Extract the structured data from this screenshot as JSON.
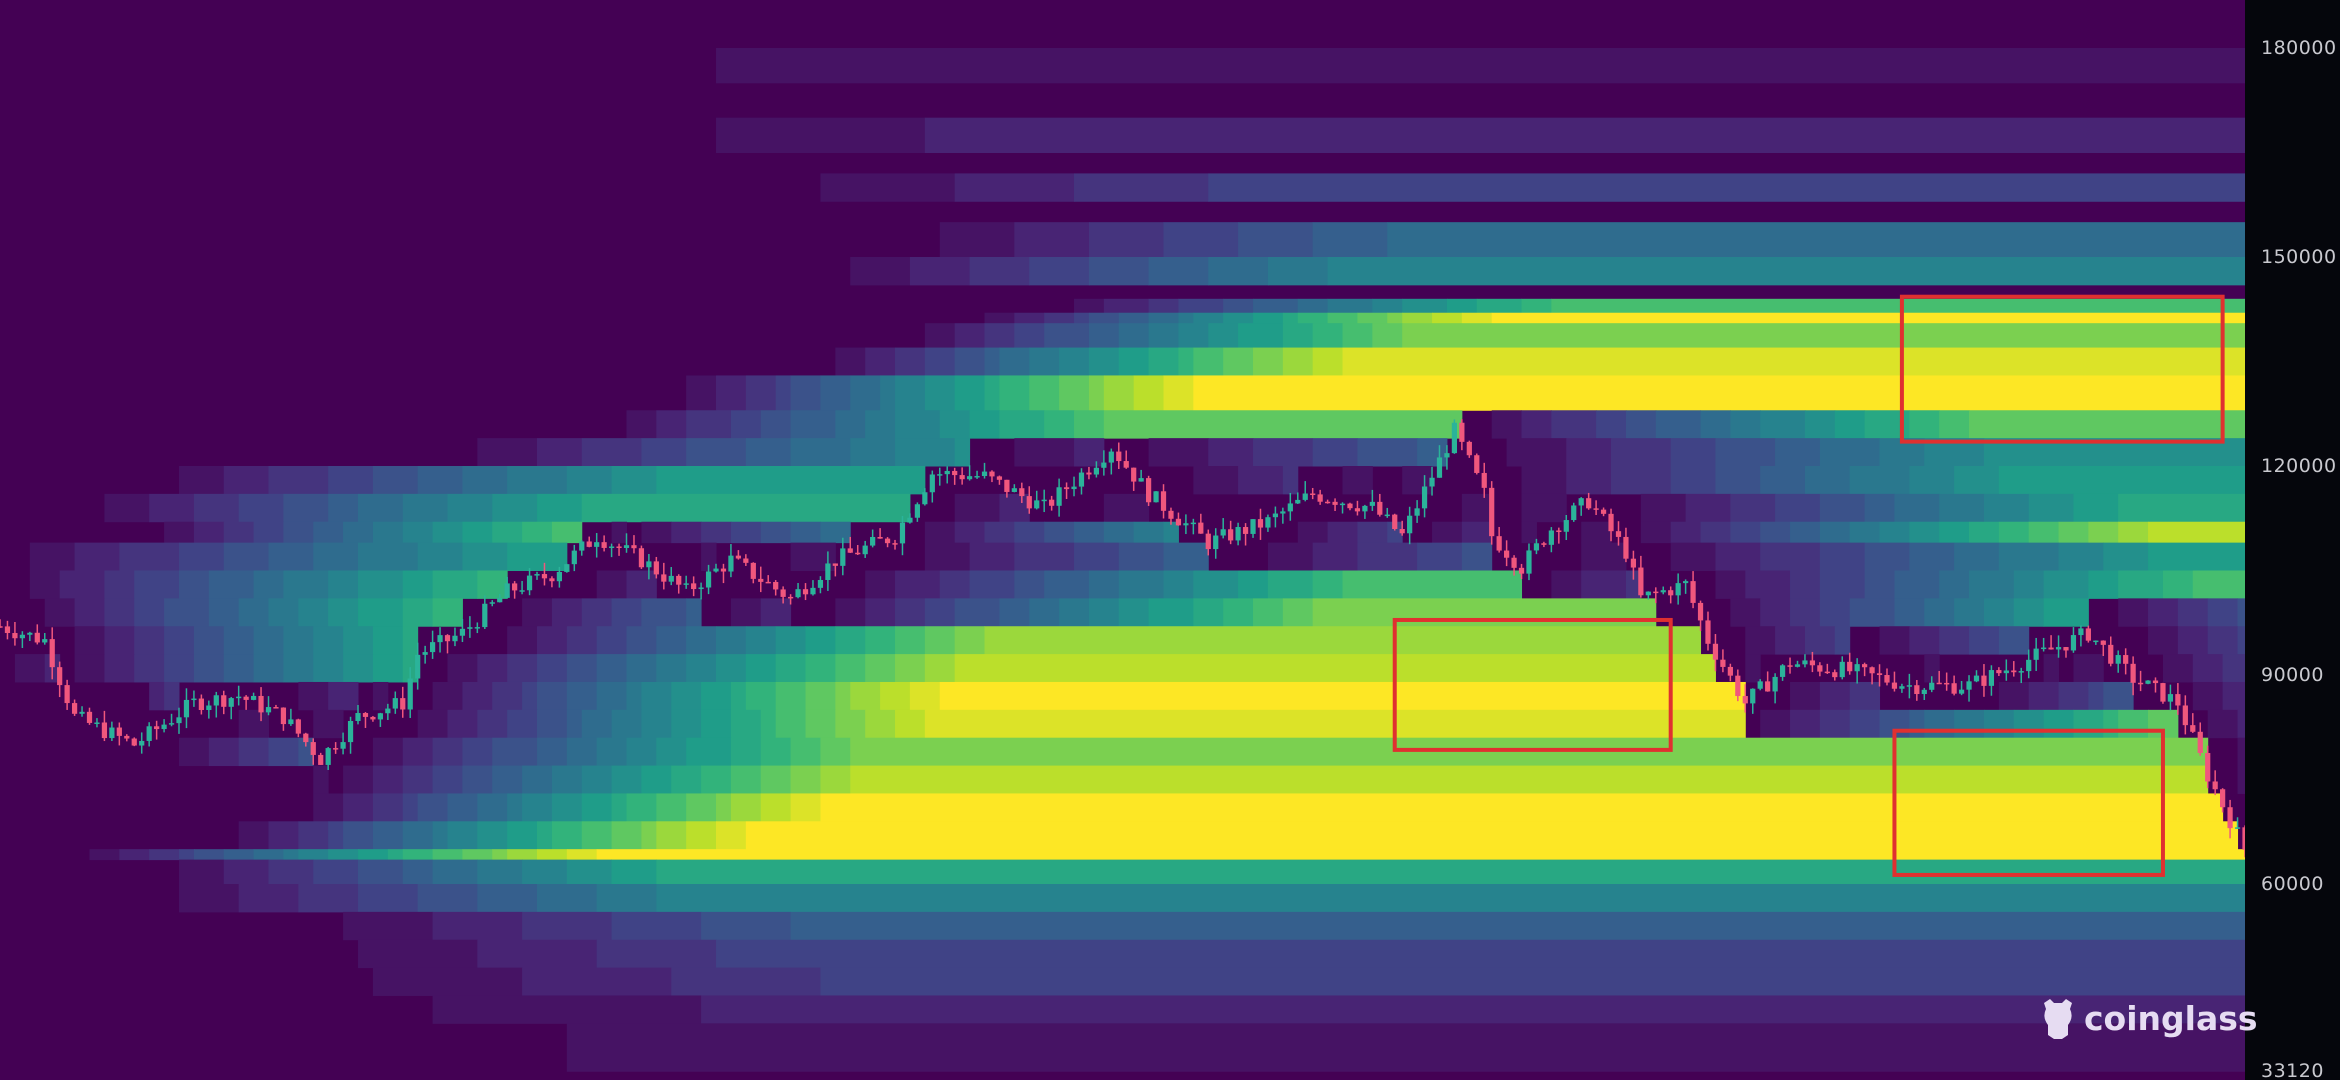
{
  "chart_data": {
    "type": "heatmap",
    "title": "",
    "xlabel": "",
    "ylabel": "",
    "y_ticks": [
      "180000",
      "150000",
      "120000",
      "90000",
      "60000",
      "33120"
    ],
    "ylim": [
      33120,
      180000
    ],
    "x_range_periods": [
      0,
      301
    ],
    "colormap": "viridis",
    "colors": {
      "background": "#440154",
      "up_candle": "#2bb39a",
      "down_candle": "#f0577d",
      "highlight_box": "#e03030",
      "axis_bg": "#05060c"
    },
    "price_path": [
      [
        0,
        97000
      ],
      [
        6,
        95000
      ],
      [
        10,
        84000
      ],
      [
        18,
        80000
      ],
      [
        26,
        86000
      ],
      [
        32,
        87000
      ],
      [
        38,
        84000
      ],
      [
        43,
        78000
      ],
      [
        48,
        84000
      ],
      [
        54,
        86000
      ],
      [
        56,
        93000
      ],
      [
        62,
        96000
      ],
      [
        68,
        102000
      ],
      [
        74,
        104500
      ],
      [
        80,
        110000
      ],
      [
        86,
        106500
      ],
      [
        92,
        102000
      ],
      [
        98,
        106500
      ],
      [
        106,
        101000
      ],
      [
        112,
        106500
      ],
      [
        120,
        110000
      ],
      [
        125,
        119000
      ],
      [
        132,
        118500
      ],
      [
        140,
        114000
      ],
      [
        149,
        122700
      ],
      [
        154,
        116000
      ],
      [
        162,
        109000
      ],
      [
        170,
        112000
      ],
      [
        176,
        116000
      ],
      [
        184,
        114000
      ],
      [
        188,
        110000
      ],
      [
        195,
        125000
      ],
      [
        199,
        116000
      ],
      [
        200,
        110000
      ],
      [
        204,
        105500
      ],
      [
        208,
        111000
      ],
      [
        213,
        115000
      ],
      [
        218,
        107700
      ],
      [
        220,
        101000
      ],
      [
        226,
        103000
      ],
      [
        229,
        95000
      ],
      [
        234,
        86000
      ],
      [
        240,
        91700
      ],
      [
        248,
        90600
      ],
      [
        256,
        88500
      ],
      [
        264,
        88500
      ],
      [
        273,
        92700
      ],
      [
        280,
        96000
      ],
      [
        286,
        89500
      ],
      [
        292,
        86000
      ],
      [
        296,
        75600
      ],
      [
        301,
        65000
      ]
    ],
    "liquidity_bands": [
      {
        "low": 175000,
        "high": 180000,
        "intensity": 0.05,
        "start": 60
      },
      {
        "low": 165000,
        "high": 170000,
        "intensity": 0.12,
        "start": 80
      },
      {
        "low": 158000,
        "high": 162000,
        "intensity": 0.2,
        "start": 100
      },
      {
        "low": 150000,
        "high": 155000,
        "intensity": 0.35,
        "start": 120
      },
      {
        "low": 146000,
        "high": 150000,
        "intensity": 0.45,
        "start": 110
      },
      {
        "low": 142000,
        "high": 144000,
        "intensity": 0.7,
        "start": 140
      },
      {
        "low": 140500,
        "high": 142000,
        "intensity": 1.0,
        "start": 130
      },
      {
        "low": 137000,
        "high": 140500,
        "intensity": 0.8,
        "start": 120
      },
      {
        "low": 133000,
        "high": 137000,
        "intensity": 0.95,
        "start": 110
      },
      {
        "low": 128000,
        "high": 133000,
        "intensity": 1.0,
        "start": 90
      },
      {
        "low": 124000,
        "high": 128000,
        "intensity": 0.75,
        "start": 80
      },
      {
        "low": 120000,
        "high": 124000,
        "intensity": 0.5,
        "start": 60
      },
      {
        "low": 116000,
        "high": 120000,
        "intensity": 0.55,
        "start": 20
      },
      {
        "low": 112000,
        "high": 116000,
        "intensity": 0.6,
        "start": 10
      },
      {
        "low": 109000,
        "high": 112000,
        "intensity": 0.9,
        "start": 20
      },
      {
        "low": 105000,
        "high": 109000,
        "intensity": 0.55,
        "start": 0
      },
      {
        "low": 101000,
        "high": 105000,
        "intensity": 0.7,
        "start": 0
      },
      {
        "low": 97000,
        "high": 101000,
        "intensity": 0.8,
        "start": 0
      },
      {
        "low": 93000,
        "high": 97000,
        "intensity": 0.85,
        "start": 0
      },
      {
        "low": 89000,
        "high": 93000,
        "intensity": 0.9,
        "start": 0
      },
      {
        "low": 85000,
        "high": 89000,
        "intensity": 1.0,
        "start": 20
      },
      {
        "low": 81000,
        "high": 85000,
        "intensity": 0.95,
        "start": 30
      },
      {
        "low": 77000,
        "high": 81000,
        "intensity": 0.8,
        "start": 20
      },
      {
        "low": 73000,
        "high": 77000,
        "intensity": 0.9,
        "start": 40
      },
      {
        "low": 69000,
        "high": 73000,
        "intensity": 1.0,
        "start": 40
      },
      {
        "low": 65000,
        "high": 69000,
        "intensity": 1.0,
        "start": 30
      },
      {
        "low": 63500,
        "high": 65000,
        "intensity": 1.0,
        "start": 10
      },
      {
        "low": 60000,
        "high": 63500,
        "intensity": 0.6,
        "start": 20
      },
      {
        "low": 56000,
        "high": 60000,
        "intensity": 0.45,
        "start": 20
      },
      {
        "low": 52000,
        "high": 56000,
        "intensity": 0.3,
        "start": 40
      },
      {
        "low": 48000,
        "high": 52000,
        "intensity": 0.22,
        "start": 40
      },
      {
        "low": 44000,
        "high": 48000,
        "intensity": 0.18,
        "start": 40
      },
      {
        "low": 40000,
        "high": 44000,
        "intensity": 0.1,
        "start": 40
      },
      {
        "low": 33120,
        "high": 40000,
        "intensity": 0.05,
        "start": 40
      }
    ],
    "highlight_boxes": [
      {
        "t0": 255,
        "t1": 298,
        "low": 123500,
        "high": 144300
      },
      {
        "t0": 187,
        "t1": 224,
        "low": 79250,
        "high": 97900
      },
      {
        "t0": 254,
        "t1": 290,
        "low": 61300,
        "high": 82000
      }
    ]
  },
  "watermark": {
    "text": "coinglass"
  }
}
